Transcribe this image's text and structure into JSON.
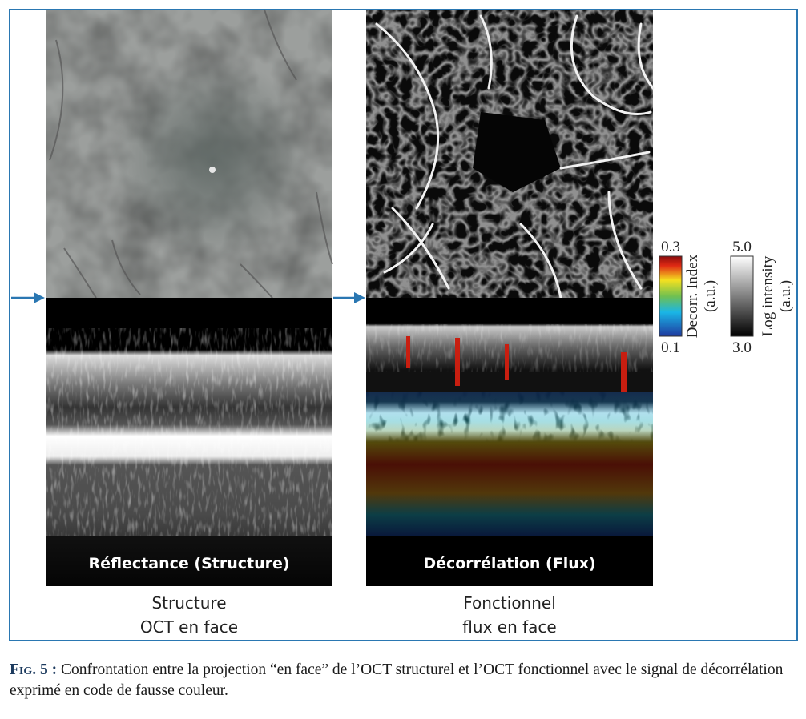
{
  "figure": {
    "panels": [
      {
        "overlay_label": "Réflectance (Structure)",
        "caption": [
          "Structure",
          "OCT en face"
        ]
      },
      {
        "overlay_label": "Décorrélation (Flux)",
        "caption": [
          "Fonctionnel",
          "flux en face"
        ]
      }
    ],
    "colorbars": [
      {
        "max": "0.3",
        "min": "0.1",
        "label": [
          "Decorr. Index",
          "(a.u.)"
        ]
      },
      {
        "max": "5.0",
        "min": "3.0",
        "label": [
          "Log intensity",
          "(a.u.)"
        ]
      }
    ],
    "caption": {
      "label": "Fig. 5 :",
      "text": "Confrontation entre la projection “en face” de l’OCT structurel et l’OCT fonctionnel avec le signal de décorrélation exprimé en code de fausse couleur."
    }
  }
}
